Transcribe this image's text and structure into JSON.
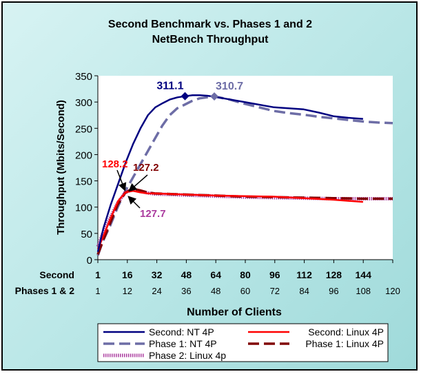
{
  "chart_data": {
    "type": "line",
    "title_line1": "Second Benchmark vs. Phases 1 and 2",
    "title_line2": "NetBench Throughput",
    "ylabel": "Throughput (Mbits/Second)",
    "xlabel": "Number of Clients",
    "ylim": [
      0,
      350
    ],
    "yticks": [
      0,
      50,
      100,
      150,
      200,
      250,
      300,
      350
    ],
    "grid": false,
    "x_axis_rows": [
      {
        "label": "Second",
        "ticks": [
          "1",
          "16",
          "32",
          "48",
          "64",
          "80",
          "96",
          "112",
          "128",
          "144"
        ]
      },
      {
        "label": "Phases 1 & 2",
        "ticks": [
          "1",
          "12",
          "24",
          "36",
          "48",
          "60",
          "72",
          "84",
          "96",
          "108",
          "120"
        ]
      }
    ],
    "series": [
      {
        "name": "Second: NT 4P",
        "color": "#000080",
        "style": "solid",
        "scale": "second",
        "x": [
          1,
          4,
          8,
          12,
          16,
          20,
          24,
          28,
          32,
          36,
          40,
          44,
          48,
          52,
          56,
          60,
          64,
          72,
          80,
          88,
          96,
          104,
          112,
          120,
          128,
          136,
          144
        ],
        "y": [
          15,
          60,
          105,
          145,
          185,
          220,
          250,
          275,
          290,
          298,
          305,
          309,
          311.1,
          313,
          313,
          312,
          310,
          305,
          300,
          295,
          290,
          288,
          286,
          280,
          273,
          270,
          268
        ]
      },
      {
        "name": "Phase 1: NT 4P",
        "color": "#6d6da6",
        "style": "dash",
        "scale": "phases",
        "x": [
          1,
          3,
          6,
          9,
          12,
          15,
          18,
          21,
          24,
          27,
          30,
          33,
          36,
          39,
          42,
          45,
          48,
          54,
          60,
          66,
          72,
          78,
          84,
          90,
          96,
          102,
          108,
          114,
          120
        ],
        "y": [
          8,
          35,
          65,
          100,
          130,
          155,
          180,
          205,
          230,
          255,
          275,
          288,
          295,
          302,
          307,
          309,
          310.7,
          305,
          297,
          290,
          283,
          279,
          276,
          272,
          269,
          266,
          263,
          261,
          260
        ]
      },
      {
        "name": "Second: Linux 4P",
        "color": "#ff0000",
        "style": "solid",
        "scale": "second",
        "x": [
          1,
          4,
          8,
          12,
          16,
          20,
          24,
          28,
          32,
          48,
          64,
          80,
          96,
          112,
          128,
          144
        ],
        "y": [
          20,
          45,
          80,
          112,
          128.2,
          131,
          128,
          126,
          126,
          124,
          122,
          121,
          120,
          117,
          114,
          110
        ]
      },
      {
        "name": "Phase 1: Linux 4P",
        "color": "#800000",
        "style": "dash",
        "scale": "phases",
        "x": [
          1,
          3,
          6,
          9,
          12,
          15,
          18,
          21,
          24,
          36,
          48,
          60,
          72,
          84,
          96,
          108,
          120
        ],
        "y": [
          10,
          35,
          70,
          105,
          127.2,
          135,
          132,
          128,
          126,
          124,
          122,
          120,
          119,
          118,
          117,
          116,
          116
        ]
      },
      {
        "name": "Phase 2: Linux 4p",
        "color": "#aa3a9e",
        "style": "dotted",
        "scale": "phases",
        "x": [
          1,
          3,
          6,
          9,
          12,
          15,
          18,
          21,
          24,
          36,
          48,
          60,
          72,
          84,
          96,
          108,
          120
        ],
        "y": [
          25,
          50,
          80,
          108,
          127.7,
          134,
          130,
          127,
          125,
          123,
          121,
          119,
          118,
          117,
          116,
          116,
          116
        ]
      }
    ],
    "annotations": [
      {
        "text": "311.1",
        "color": "#000080",
        "series": 0,
        "x": 48,
        "y": 311.1
      },
      {
        "text": "310.7",
        "color": "#6d6da6",
        "series": 1,
        "x": 48,
        "y": 310.7
      },
      {
        "text": "128.2",
        "color": "#ff0000",
        "series": 2,
        "x": 16,
        "y": 128.2
      },
      {
        "text": "127.2",
        "color": "#800000",
        "series": 3,
        "x": 12,
        "y": 127.2
      },
      {
        "text": "127.7",
        "color": "#aa3a9e",
        "series": 4,
        "x": 12,
        "y": 127.7
      }
    ]
  }
}
